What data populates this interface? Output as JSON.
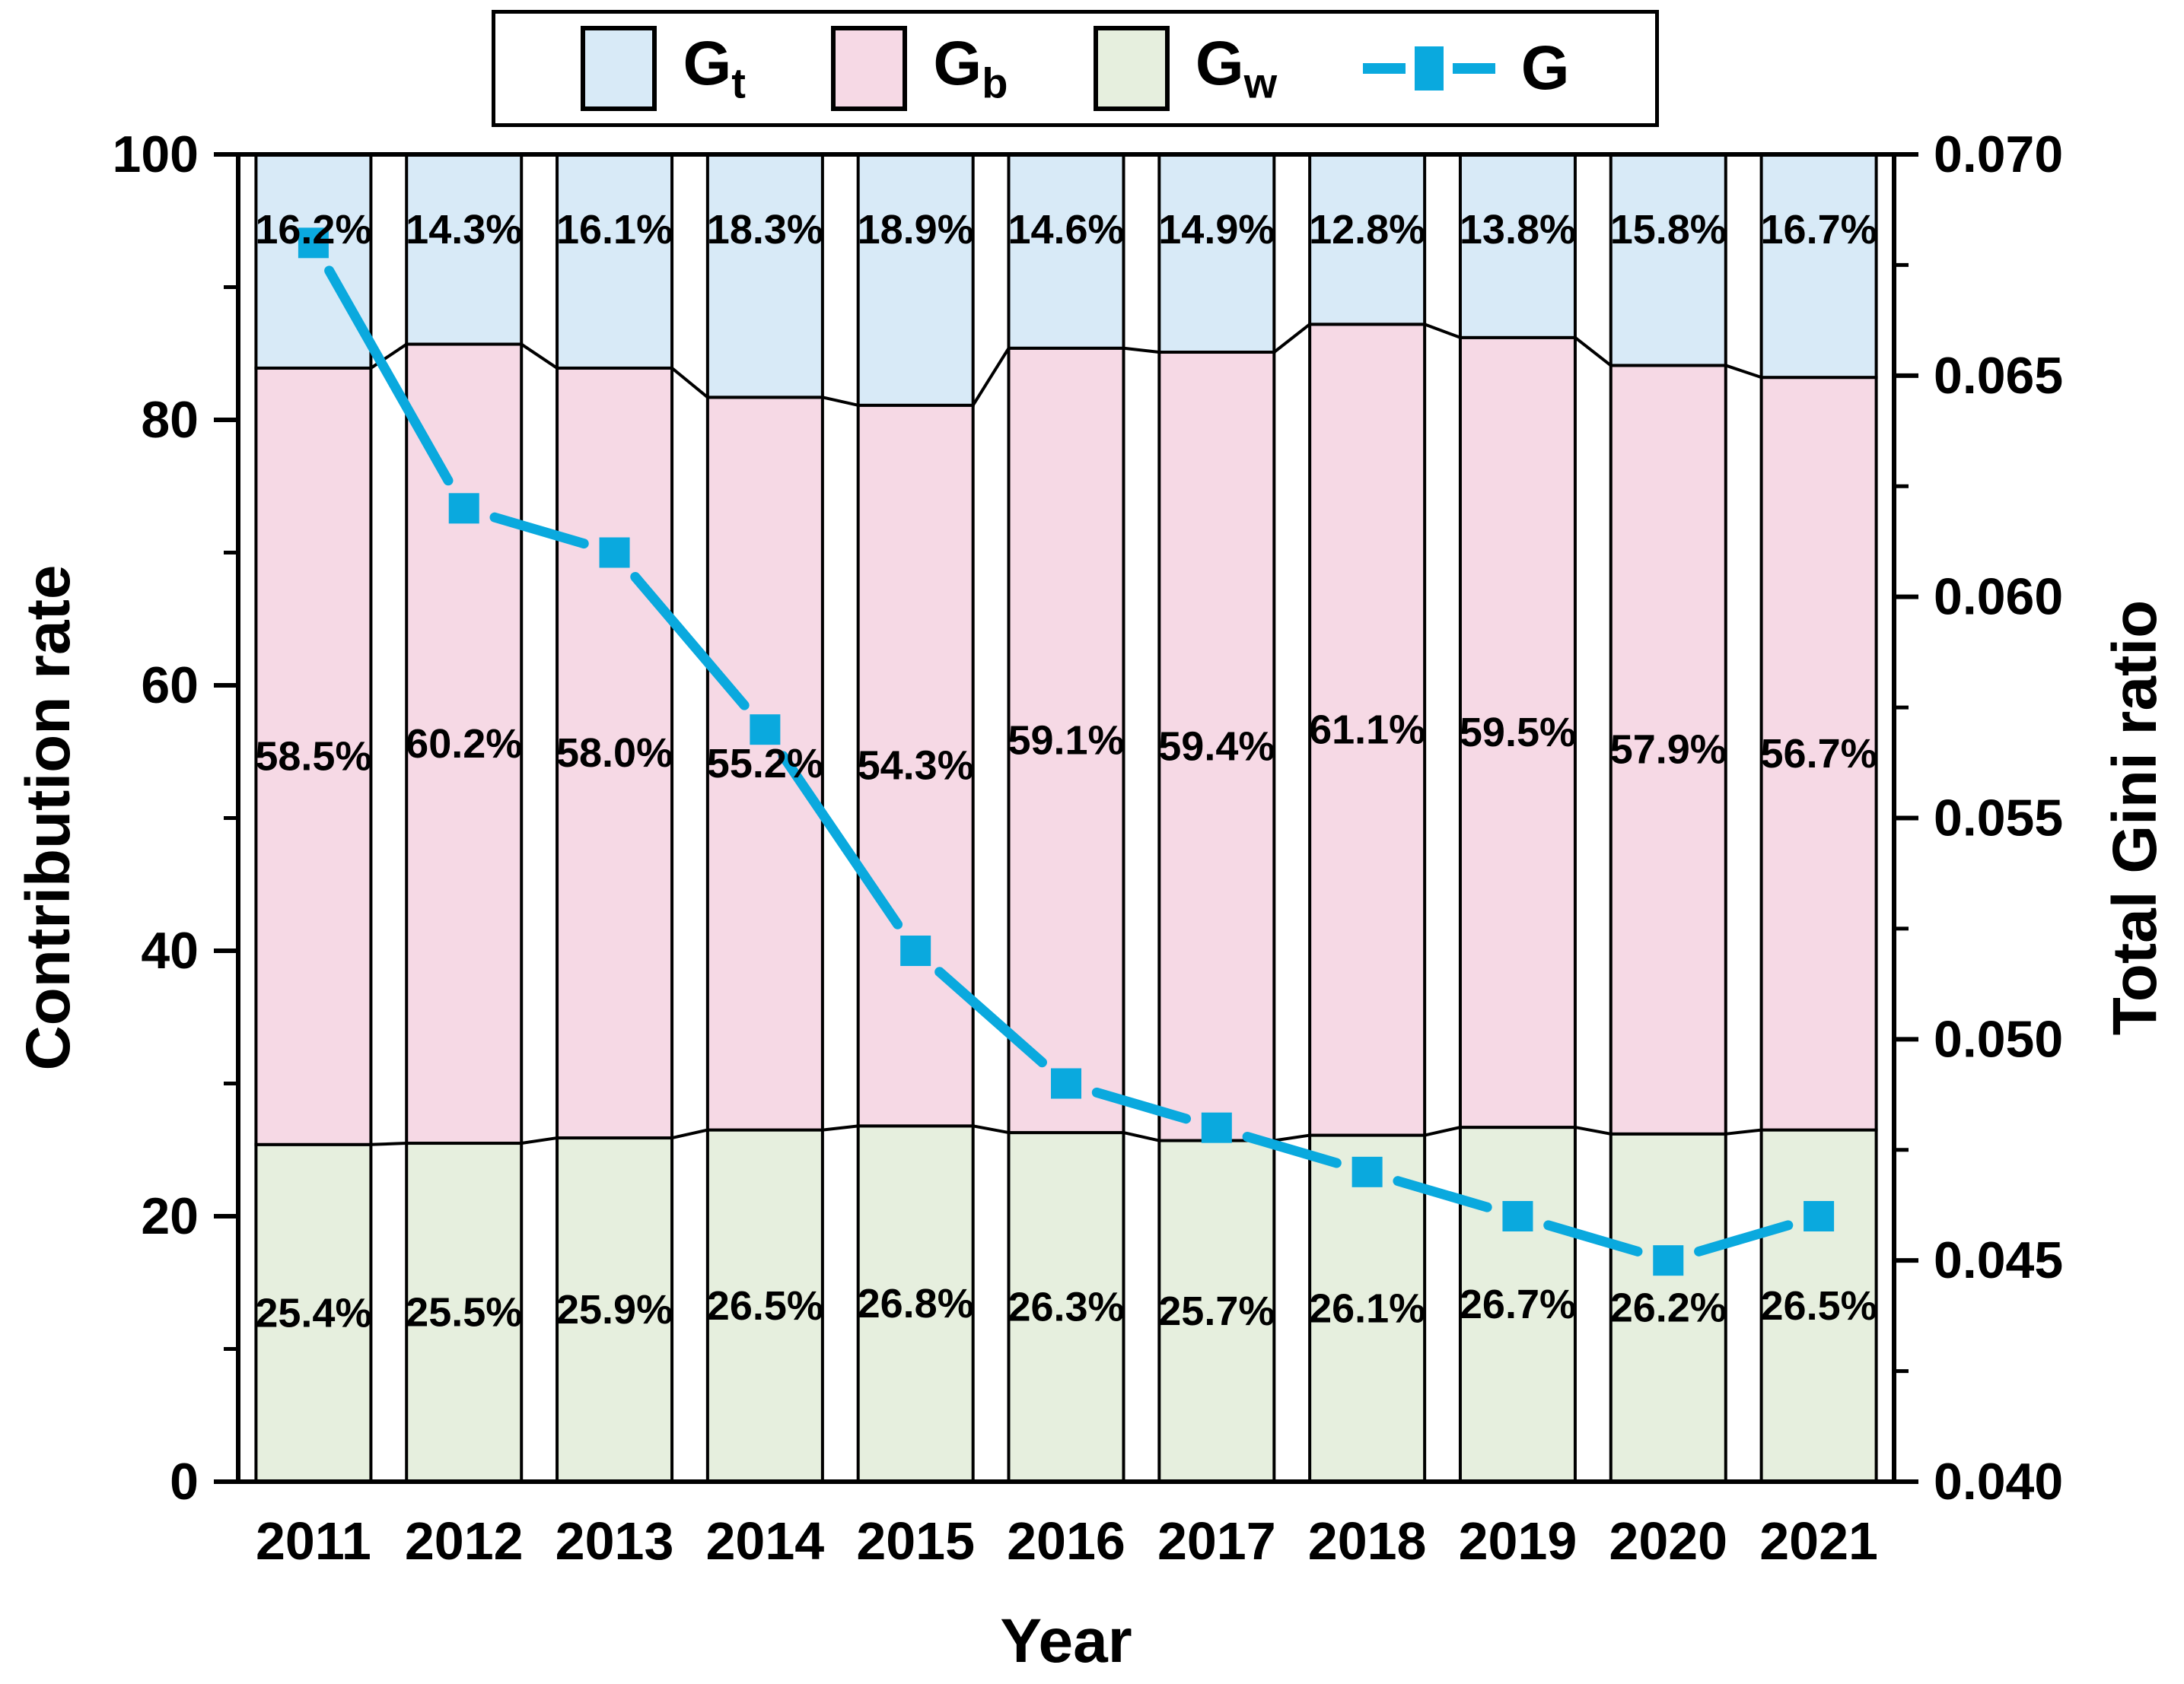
{
  "chart_data": {
    "type": "bar",
    "subtype": "stacked-bars-with-line-overlay",
    "title": "",
    "categories": [
      "2011",
      "2012",
      "2013",
      "2014",
      "2015",
      "2016",
      "2017",
      "2018",
      "2019",
      "2020",
      "2021"
    ],
    "series": [
      {
        "name": "Gt",
        "label": "G",
        "sub": "t",
        "color": "#d8eaf7",
        "values": [
          16.2,
          14.3,
          16.1,
          18.3,
          18.9,
          14.6,
          14.9,
          12.8,
          13.8,
          15.8,
          16.7
        ]
      },
      {
        "name": "Gb",
        "label": "G",
        "sub": "b",
        "color": "#f6d9e5",
        "values": [
          58.5,
          60.2,
          58.0,
          55.2,
          54.3,
          59.1,
          59.4,
          61.1,
          59.5,
          57.9,
          56.7
        ]
      },
      {
        "name": "Gw",
        "label": "G",
        "sub": "w",
        "color": "#e6efde",
        "values": [
          25.4,
          25.5,
          25.9,
          26.5,
          26.8,
          26.3,
          25.7,
          26.1,
          26.7,
          26.2,
          26.5
        ]
      }
    ],
    "line_series": {
      "name": "G",
      "label": "G",
      "color": "#0aa9de",
      "values": [
        0.068,
        0.062,
        0.061,
        0.057,
        0.052,
        0.049,
        0.048,
        0.047,
        0.046,
        0.045,
        0.046
      ]
    },
    "left_axis": {
      "label": "Contribution rate",
      "min": 0,
      "max": 100,
      "major_ticks": [
        0,
        20,
        40,
        60,
        80,
        100
      ],
      "minor_step": 10
    },
    "right_axis": {
      "label": "Total Gini ratio",
      "min": 0.04,
      "max": 0.07,
      "major_step": 0.005,
      "minor_step": 0.0025
    },
    "x_axis": {
      "label": "Year"
    },
    "legend_position": "top-center",
    "grid": "off",
    "value_label_suffix": "%"
  }
}
